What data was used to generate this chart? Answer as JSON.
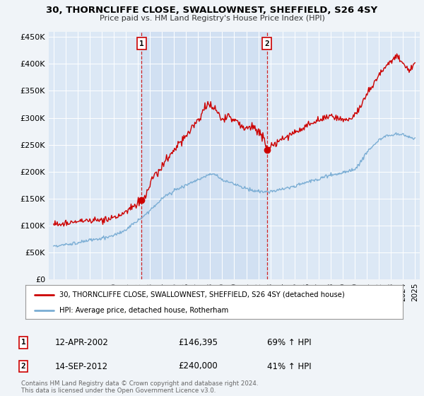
{
  "title": "30, THORNCLIFFE CLOSE, SWALLOWNEST, SHEFFIELD, S26 4SY",
  "subtitle": "Price paid vs. HM Land Registry's House Price Index (HPI)",
  "bg_color": "#f0f4f8",
  "plot_bg_color": "#dce8f5",
  "shade_color": "#c8daf0",
  "legend_line1": "30, THORNCLIFFE CLOSE, SWALLOWNEST, SHEFFIELD, S26 4SY (detached house)",
  "legend_line2": "HPI: Average price, detached house, Rotherham",
  "sale1_date": "12-APR-2002",
  "sale1_price": "£146,395",
  "sale1_hpi": "69% ↑ HPI",
  "sale2_date": "14-SEP-2012",
  "sale2_price": "£240,000",
  "sale2_hpi": "41% ↑ HPI",
  "footer": "Contains HM Land Registry data © Crown copyright and database right 2024.\nThis data is licensed under the Open Government Licence v3.0.",
  "red_color": "#cc0000",
  "blue_color": "#7aadd4",
  "marker1_year": 2002.3,
  "marker1_value": 146395,
  "marker2_year": 2012.7,
  "marker2_value": 240000,
  "vline1_year": 2002.3,
  "vline2_year": 2012.7,
  "ylim_max": 460000,
  "xlim_start": 1994.6,
  "xlim_end": 2025.4
}
